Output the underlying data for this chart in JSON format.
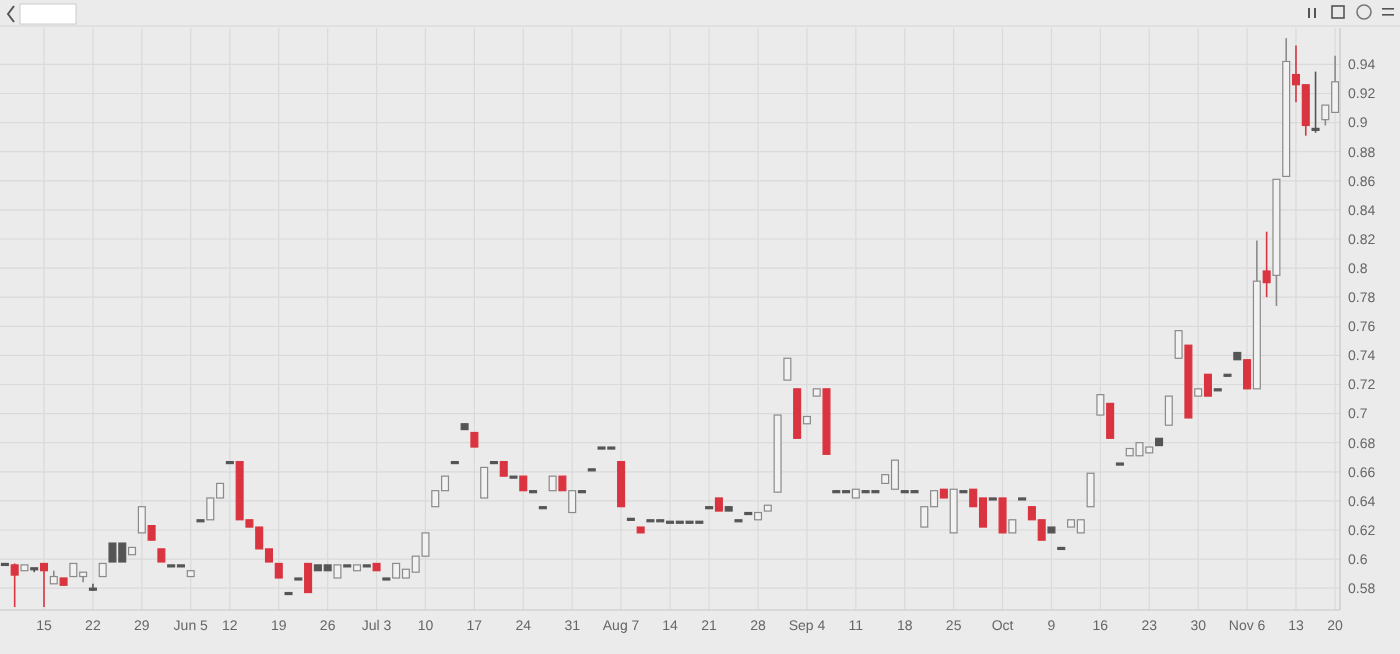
{
  "chart_data": {
    "type": "candlestick",
    "categories": [
      null,
      null,
      null,
      null,
      "15",
      null,
      null,
      null,
      null,
      "22",
      null,
      null,
      null,
      null,
      "29",
      null,
      null,
      null,
      null,
      "Jun 5",
      null,
      null,
      null,
      "12",
      null,
      null,
      null,
      null,
      "19",
      null,
      null,
      null,
      null,
      "26",
      null,
      null,
      null,
      null,
      "Jul 3",
      null,
      null,
      null,
      null,
      "10",
      null,
      null,
      null,
      null,
      "17",
      null,
      null,
      null,
      null,
      "24",
      null,
      null,
      null,
      null,
      "31",
      null,
      null,
      null,
      null,
      "Aug 7",
      null,
      null,
      null,
      null,
      "14",
      null,
      null,
      null,
      "21",
      null,
      null,
      null,
      null,
      "28",
      null,
      null,
      null,
      null,
      "Sep 4",
      null,
      null,
      null,
      null,
      "11",
      null,
      null,
      null,
      null,
      "18",
      null,
      null,
      null,
      null,
      "25",
      null,
      null,
      null,
      null,
      "Oct",
      null,
      null,
      null,
      null,
      "9",
      null,
      null,
      null,
      null,
      "16",
      null,
      null,
      null,
      null,
      "23",
      null,
      null,
      null,
      null,
      "30",
      null,
      null,
      null,
      null,
      "Nov 6",
      null,
      null,
      null,
      null,
      "13",
      null,
      null,
      null,
      "20"
    ],
    "ohlc": [
      [
        0.597,
        0.597,
        0.597,
        0.597
      ],
      [
        0.596,
        0.597,
        0.567,
        0.589
      ],
      [
        0.592,
        0.596,
        0.592,
        0.596
      ],
      [
        0.594,
        0.594,
        0.591,
        0.594
      ],
      [
        0.597,
        0.597,
        0.567,
        0.592
      ],
      [
        0.583,
        0.592,
        0.583,
        0.588
      ],
      [
        0.587,
        0.587,
        0.582,
        0.582
      ],
      [
        0.588,
        0.597,
        0.588,
        0.597
      ],
      [
        0.588,
        0.591,
        0.584,
        0.591
      ],
      [
        0.58,
        0.583,
        0.578,
        0.58
      ],
      [
        0.588,
        0.597,
        0.588,
        0.597
      ],
      [
        0.598,
        0.611,
        0.598,
        0.611
      ],
      [
        0.598,
        0.611,
        0.598,
        0.611
      ],
      [
        0.603,
        0.608,
        0.603,
        0.608
      ],
      [
        0.618,
        0.636,
        0.618,
        0.636
      ],
      [
        0.623,
        0.623,
        0.613,
        0.613
      ],
      [
        0.607,
        0.607,
        0.598,
        0.598
      ],
      [
        0.596,
        0.596,
        0.596,
        0.596
      ],
      [
        0.596,
        0.596,
        0.596,
        0.596
      ],
      [
        0.588,
        0.592,
        0.588,
        0.592
      ],
      [
        0.627,
        0.627,
        0.627,
        0.627
      ],
      [
        0.627,
        0.642,
        0.627,
        0.642
      ],
      [
        0.642,
        0.652,
        0.642,
        0.652
      ],
      [
        0.667,
        0.667,
        0.667,
        0.667
      ],
      [
        0.667,
        0.667,
        0.627,
        0.627
      ],
      [
        0.627,
        0.627,
        0.622,
        0.622
      ],
      [
        0.622,
        0.622,
        0.607,
        0.607
      ],
      [
        0.607,
        0.607,
        0.598,
        0.598
      ],
      [
        0.597,
        0.597,
        0.587,
        0.587
      ],
      [
        0.577,
        0.577,
        0.577,
        0.577
      ],
      [
        0.587,
        0.587,
        0.587,
        0.587
      ],
      [
        0.597,
        0.597,
        0.577,
        0.577
      ],
      [
        0.592,
        0.596,
        0.592,
        0.596
      ],
      [
        0.592,
        0.596,
        0.592,
        0.596
      ],
      [
        0.587,
        0.596,
        0.587,
        0.596
      ],
      [
        0.596,
        0.596,
        0.596,
        0.596
      ],
      [
        0.592,
        0.596,
        0.592,
        0.596
      ],
      [
        0.596,
        0.596,
        0.596,
        0.596
      ],
      [
        0.597,
        0.597,
        0.592,
        0.592
      ],
      [
        0.587,
        0.587,
        0.587,
        0.587
      ],
      [
        0.587,
        0.597,
        0.587,
        0.597
      ],
      [
        0.587,
        0.593,
        0.587,
        0.593
      ],
      [
        0.591,
        0.602,
        0.591,
        0.602
      ],
      [
        0.602,
        0.618,
        0.602,
        0.618
      ],
      [
        0.636,
        0.647,
        0.636,
        0.647
      ],
      [
        0.647,
        0.657,
        0.647,
        0.657
      ],
      [
        0.667,
        0.667,
        0.667,
        0.667
      ],
      [
        0.689,
        0.693,
        0.689,
        0.693
      ],
      [
        0.687,
        0.687,
        0.677,
        0.677
      ],
      [
        0.642,
        0.663,
        0.642,
        0.663
      ],
      [
        0.667,
        0.667,
        0.667,
        0.667
      ],
      [
        0.667,
        0.667,
        0.657,
        0.657
      ],
      [
        0.657,
        0.657,
        0.657,
        0.657
      ],
      [
        0.657,
        0.657,
        0.647,
        0.647
      ],
      [
        0.647,
        0.647,
        0.647,
        0.647
      ],
      [
        0.636,
        0.636,
        0.636,
        0.636
      ],
      [
        0.647,
        0.657,
        0.647,
        0.657
      ],
      [
        0.657,
        0.657,
        0.647,
        0.647
      ],
      [
        0.632,
        0.647,
        0.632,
        0.647
      ],
      [
        0.647,
        0.647,
        0.647,
        0.647
      ],
      [
        0.662,
        0.662,
        0.662,
        0.662
      ],
      [
        0.677,
        0.677,
        0.677,
        0.677
      ],
      [
        0.677,
        0.677,
        0.677,
        0.677
      ],
      [
        0.667,
        0.667,
        0.636,
        0.636
      ],
      [
        0.628,
        0.628,
        0.628,
        0.628
      ],
      [
        0.622,
        0.622,
        0.618,
        0.618
      ],
      [
        0.627,
        0.627,
        0.627,
        0.627
      ],
      [
        0.627,
        0.627,
        0.627,
        0.627
      ],
      [
        0.626,
        0.626,
        0.626,
        0.626
      ],
      [
        0.626,
        0.626,
        0.626,
        0.626
      ],
      [
        0.626,
        0.626,
        0.626,
        0.626
      ],
      [
        0.626,
        0.626,
        0.626,
        0.626
      ],
      [
        0.636,
        0.636,
        0.636,
        0.636
      ],
      [
        0.642,
        0.642,
        0.633,
        0.633
      ],
      [
        0.633,
        0.636,
        0.633,
        0.636
      ],
      [
        0.627,
        0.627,
        0.627,
        0.627
      ],
      [
        0.632,
        0.632,
        0.632,
        0.632
      ],
      [
        0.627,
        0.632,
        0.627,
        0.632
      ],
      [
        0.633,
        0.637,
        0.633,
        0.637
      ],
      [
        0.646,
        0.699,
        0.646,
        0.699
      ],
      [
        0.723,
        0.738,
        0.723,
        0.738
      ],
      [
        0.717,
        0.717,
        0.683,
        0.683
      ],
      [
        0.693,
        0.698,
        0.693,
        0.698
      ],
      [
        0.712,
        0.717,
        0.712,
        0.717
      ],
      [
        0.717,
        0.717,
        0.672,
        0.672
      ],
      [
        0.647,
        0.647,
        0.647,
        0.647
      ],
      [
        0.647,
        0.647,
        0.647,
        0.647
      ],
      [
        0.642,
        0.648,
        0.642,
        0.648
      ],
      [
        0.647,
        0.647,
        0.647,
        0.647
      ],
      [
        0.647,
        0.647,
        0.647,
        0.647
      ],
      [
        0.652,
        0.658,
        0.652,
        0.658
      ],
      [
        0.648,
        0.668,
        0.648,
        0.668
      ],
      [
        0.647,
        0.647,
        0.647,
        0.647
      ],
      [
        0.647,
        0.647,
        0.647,
        0.647
      ],
      [
        0.622,
        0.636,
        0.622,
        0.636
      ],
      [
        0.636,
        0.647,
        0.636,
        0.647
      ],
      [
        0.648,
        0.648,
        0.642,
        0.642
      ],
      [
        0.618,
        0.648,
        0.618,
        0.648
      ],
      [
        0.647,
        0.647,
        0.647,
        0.647
      ],
      [
        0.648,
        0.648,
        0.636,
        0.636
      ],
      [
        0.642,
        0.642,
        0.622,
        0.622
      ],
      [
        0.642,
        0.642,
        0.642,
        0.642
      ],
      [
        0.642,
        0.642,
        0.618,
        0.618
      ],
      [
        0.618,
        0.627,
        0.618,
        0.627
      ],
      [
        0.642,
        0.642,
        0.642,
        0.642
      ],
      [
        0.636,
        0.636,
        0.627,
        0.627
      ],
      [
        0.627,
        0.627,
        0.613,
        0.613
      ],
      [
        0.618,
        0.622,
        0.618,
        0.622
      ],
      [
        0.608,
        0.608,
        0.608,
        0.608
      ],
      [
        0.622,
        0.627,
        0.622,
        0.627
      ],
      [
        0.618,
        0.627,
        0.618,
        0.627
      ],
      [
        0.636,
        0.659,
        0.636,
        0.659
      ],
      [
        0.699,
        0.713,
        0.699,
        0.713
      ],
      [
        0.707,
        0.707,
        0.683,
        0.683
      ],
      [
        0.666,
        0.666,
        0.666,
        0.666
      ],
      [
        0.671,
        0.676,
        0.671,
        0.676
      ],
      [
        0.671,
        0.68,
        0.671,
        0.68
      ],
      [
        0.673,
        0.677,
        0.673,
        0.677
      ],
      [
        0.678,
        0.683,
        0.678,
        0.683
      ],
      [
        0.692,
        0.712,
        0.692,
        0.712
      ],
      [
        0.738,
        0.757,
        0.738,
        0.757
      ],
      [
        0.747,
        0.747,
        0.697,
        0.697
      ],
      [
        0.712,
        0.717,
        0.712,
        0.717
      ],
      [
        0.727,
        0.727,
        0.712,
        0.712
      ],
      [
        0.717,
        0.717,
        0.717,
        0.717
      ],
      [
        0.727,
        0.727,
        0.727,
        0.727
      ],
      [
        0.737,
        0.742,
        0.737,
        0.742
      ],
      [
        0.737,
        0.737,
        0.717,
        0.717
      ],
      [
        0.717,
        0.819,
        0.717,
        0.791
      ],
      [
        0.798,
        0.825,
        0.78,
        0.79
      ],
      [
        0.795,
        0.861,
        0.774,
        0.861
      ],
      [
        0.863,
        0.958,
        0.863,
        0.942
      ],
      [
        0.933,
        0.953,
        0.914,
        0.926
      ],
      [
        0.926,
        0.926,
        0.891,
        0.898
      ],
      [
        0.896,
        0.935,
        0.893,
        0.896
      ],
      [
        0.902,
        0.912,
        0.898,
        0.912
      ],
      [
        0.907,
        0.946,
        0.907,
        0.928
      ]
    ],
    "colors": [
      "#555555",
      "#d9343f",
      "#f2f2f2",
      "#555555",
      "#d9343f",
      "#f2f2f2",
      "#d9343f",
      "#f2f2f2",
      "#f2f2f2",
      "#555555",
      "#f2f2f2",
      "#555555",
      "#555555",
      "#f2f2f2",
      "#f2f2f2",
      "#d9343f",
      "#d9343f",
      "#555555",
      "#555555",
      "#f2f2f2",
      "#555555",
      "#f2f2f2",
      "#f2f2f2",
      "#555555",
      "#d9343f",
      "#d9343f",
      "#d9343f",
      "#d9343f",
      "#d9343f",
      "#555555",
      "#555555",
      "#d9343f",
      "#555555",
      "#555555",
      "#f2f2f2",
      "#555555",
      "#f2f2f2",
      "#555555",
      "#d9343f",
      "#555555",
      "#f2f2f2",
      "#f2f2f2",
      "#f2f2f2",
      "#f2f2f2",
      "#f2f2f2",
      "#f2f2f2",
      "#555555",
      "#555555",
      "#d9343f",
      "#f2f2f2",
      "#555555",
      "#d9343f",
      "#555555",
      "#d9343f",
      "#555555",
      "#555555",
      "#f2f2f2",
      "#d9343f",
      "#f2f2f2",
      "#555555",
      "#555555",
      "#555555",
      "#555555",
      "#d9343f",
      "#555555",
      "#d9343f",
      "#555555",
      "#555555",
      "#555555",
      "#555555",
      "#555555",
      "#555555",
      "#555555",
      "#d9343f",
      "#555555",
      "#555555",
      "#555555",
      "#f2f2f2",
      "#f2f2f2",
      "#f2f2f2",
      "#f2f2f2",
      "#d9343f",
      "#f2f2f2",
      "#f2f2f2",
      "#d9343f",
      "#555555",
      "#555555",
      "#f2f2f2",
      "#555555",
      "#555555",
      "#f2f2f2",
      "#f2f2f2",
      "#555555",
      "#555555",
      "#f2f2f2",
      "#f2f2f2",
      "#d9343f",
      "#f2f2f2",
      "#555555",
      "#d9343f",
      "#d9343f",
      "#555555",
      "#d9343f",
      "#f2f2f2",
      "#555555",
      "#d9343f",
      "#d9343f",
      "#555555",
      "#555555",
      "#f2f2f2",
      "#f2f2f2",
      "#f2f2f2",
      "#f2f2f2",
      "#d9343f",
      "#555555",
      "#f2f2f2",
      "#f2f2f2",
      "#f2f2f2",
      "#555555",
      "#f2f2f2",
      "#f2f2f2",
      "#d9343f",
      "#f2f2f2",
      "#d9343f",
      "#555555",
      "#555555",
      "#555555",
      "#d9343f",
      "#f2f2f2",
      "#d9343f",
      "#f2f2f2",
      "#f2f2f2",
      "#d9343f",
      "#d9343f",
      "#555555",
      "#f2f2f2",
      "#f2f2f2"
    ],
    "ylim": [
      0.565,
      0.965
    ],
    "yticks": [
      {
        "value": 0.58,
        "label": "0.58"
      },
      {
        "value": 0.6,
        "label": "0.6"
      },
      {
        "value": 0.62,
        "label": "0.62"
      },
      {
        "value": 0.64,
        "label": "0.64"
      },
      {
        "value": 0.66,
        "label": "0.66"
      },
      {
        "value": 0.68,
        "label": "0.68"
      },
      {
        "value": 0.7,
        "label": "0.7"
      },
      {
        "value": 0.72,
        "label": "0.72"
      },
      {
        "value": 0.74,
        "label": "0.74"
      },
      {
        "value": 0.76,
        "label": "0.76"
      },
      {
        "value": 0.78,
        "label": "0.78"
      },
      {
        "value": 0.8,
        "label": "0.8"
      },
      {
        "value": 0.82,
        "label": "0.82"
      },
      {
        "value": 0.84,
        "label": "0.84"
      },
      {
        "value": 0.86,
        "label": "0.86"
      },
      {
        "value": 0.88,
        "label": "0.88"
      },
      {
        "value": 0.9,
        "label": "0.9"
      },
      {
        "value": 0.92,
        "label": "0.92"
      },
      {
        "value": 0.94,
        "label": "0.94"
      }
    ],
    "grid": true
  }
}
